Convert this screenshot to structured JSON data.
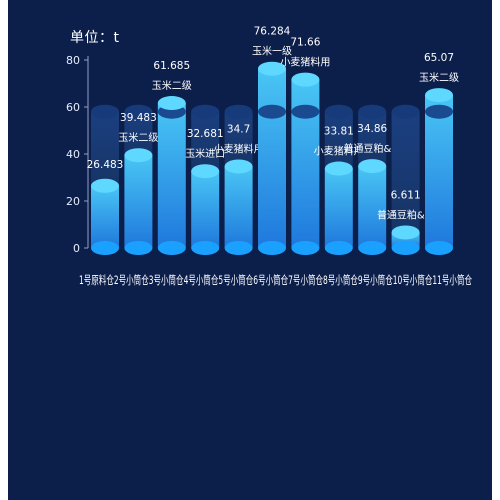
{
  "chart_data": {
    "type": "bar",
    "unit_label": "单位：t",
    "ylim": [
      0,
      80
    ],
    "yticks": [
      0,
      20,
      40,
      60,
      80
    ],
    "grid": false,
    "categories": [
      "1号原料仓",
      "2号小筒仓",
      "3号小筒仓",
      "4号小筒仓",
      "5号小筒仓",
      "6号小筒仓",
      "7号小筒仓",
      "8号小筒仓",
      "9号小筒仓",
      "10号小筒仓",
      "11号小筒仓"
    ],
    "category_line": "1号原料仓2号小筒仓3号小筒仓4号小筒仓5号小筒仓6号小筒仓7号小筒仓8号小筒仓9号小筒仓10号小筒仓11号小筒仓",
    "capacity": 58,
    "values": [
      26.483,
      39.483,
      61.685,
      32.681,
      34.7,
      76.284,
      71.66,
      33.81,
      34.86,
      6.611,
      65.07
    ],
    "materials": [
      "",
      "玉米二级",
      "玉米二级",
      "玉米进口",
      "小麦猪料用",
      "玉米一级",
      "小麦猪料用",
      "小麦猪料用",
      "普通豆粕&%",
      "普通豆粕&%",
      "玉米二级"
    ],
    "colors": {
      "bar_top": "#4fd0ff",
      "bar_bottom": "#1f7fe0",
      "cap": "#5fd8ff",
      "bottom_ellipse": "#1aa0ff",
      "capacity_body": "#173a78",
      "capacity_top": "#163a7a"
    }
  }
}
